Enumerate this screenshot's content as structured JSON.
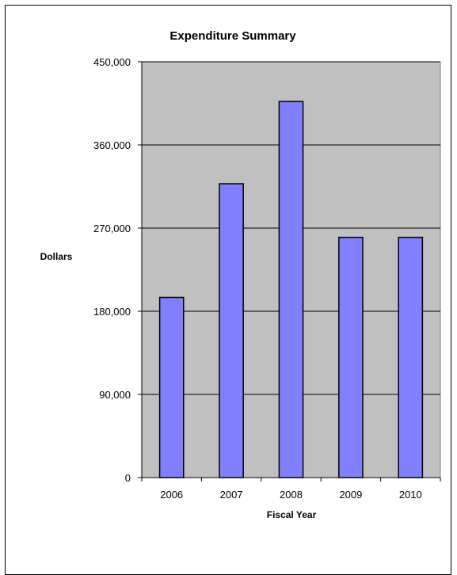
{
  "chart_data": {
    "type": "bar",
    "title": "Expenditure Summary",
    "xlabel": "Fiscal Year",
    "ylabel": "Dollars",
    "categories": [
      "2006",
      "2007",
      "2008",
      "2009",
      "2010"
    ],
    "values": [
      195000,
      318000,
      407000,
      260000,
      260000
    ],
    "ylim": [
      0,
      450000
    ],
    "yticks": [
      0,
      90000,
      180000,
      270000,
      360000,
      450000
    ],
    "ytick_labels": [
      "0",
      "90,000",
      "180,000",
      "270,000",
      "360,000",
      "450,000"
    ],
    "grid": true,
    "legend": "none",
    "colors": {
      "bar_fill": "#8080ff",
      "bar_stroke": "#000000",
      "plot_background": "#c0c0c0",
      "gridline": "#000000"
    }
  }
}
